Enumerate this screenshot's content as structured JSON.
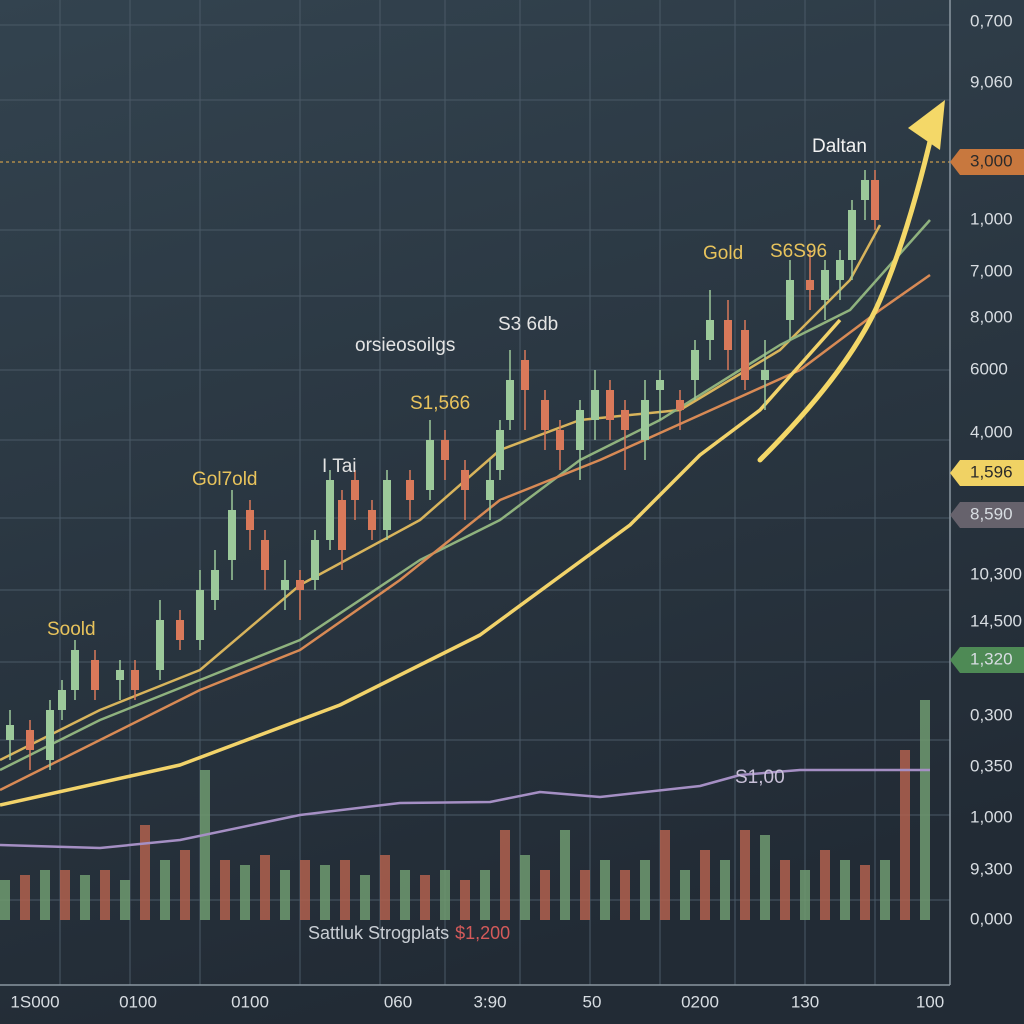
{
  "chart_data": {
    "type": "candlestick",
    "xlim": [
      0,
      95
    ],
    "ylim": [
      0,
      92
    ],
    "grid": true,
    "up_color": "#9cc99a",
    "down_color": "#d9795a",
    "candles": {
      "x": [
        1,
        3,
        5,
        6.2,
        7.5,
        9.5,
        12,
        13.5,
        16,
        18,
        20,
        21.5,
        23.2,
        25,
        26.5,
        28.5,
        30,
        31.5,
        33,
        34.2,
        35.5,
        37.2,
        38.7,
        41,
        43,
        44.5,
        46.5,
        49,
        50,
        51,
        52.5,
        54.5,
        56,
        58,
        59.5,
        61,
        62.5,
        64.5,
        66,
        68,
        69.5,
        71,
        72.8,
        74.5,
        76.5,
        79,
        81,
        82.5,
        84,
        85.2,
        86.5,
        87.5
      ],
      "open": [
        18,
        19,
        16,
        21,
        23,
        26,
        24,
        25,
        25,
        30,
        28,
        32,
        36,
        41,
        38,
        33,
        34,
        34,
        38,
        42,
        44,
        41,
        39,
        44,
        43,
        48,
        45,
        42,
        45,
        50,
        56,
        52,
        49,
        47,
        50,
        53,
        51,
        48,
        53,
        52,
        54,
        58,
        60,
        59,
        54,
        60,
        64,
        62,
        64,
        66,
        72,
        74
      ],
      "high": [
        21,
        20,
        22,
        24,
        28,
        27,
        26,
        26,
        32,
        31,
        35,
        37,
        43,
        42,
        39,
        36,
        35,
        39,
        45,
        43,
        45,
        42,
        45,
        45,
        50,
        49,
        46,
        46,
        50,
        57,
        57,
        53,
        50,
        52,
        55,
        54,
        52,
        54,
        55,
        53,
        58,
        63,
        62,
        60,
        58,
        66,
        67,
        66,
        67,
        72,
        75,
        75
      ],
      "low": [
        16,
        15,
        15,
        20,
        22,
        22,
        22,
        22,
        24,
        27,
        27,
        31,
        34,
        37,
        33,
        31,
        30,
        33,
        37,
        35,
        40,
        38,
        38,
        40,
        42,
        44,
        40,
        40,
        44,
        49,
        49,
        47,
        45,
        44,
        48,
        48,
        45,
        46,
        50,
        49,
        52,
        56,
        55,
        53,
        51,
        58,
        61,
        60,
        62,
        64,
        70,
        69
      ],
      "close": [
        19.5,
        17,
        21,
        23,
        27,
        23,
        25,
        23,
        30,
        28,
        33,
        35,
        41,
        39,
        35,
        34,
        33,
        38,
        44,
        37,
        42,
        39,
        44,
        42,
        48,
        46,
        43,
        44,
        49,
        54,
        53,
        49,
        47,
        51,
        53,
        50,
        49,
        52,
        54,
        51,
        57,
        60,
        57,
        54,
        55,
        64,
        63,
        65,
        66,
        71,
        74,
        70
      ]
    },
    "lines": [
      {
        "color": "#d8b45c",
        "x": [
          0,
          10,
          20,
          30,
          42,
          50,
          58,
          68,
          78,
          85,
          88
        ],
        "values": [
          16,
          21,
          25,
          33.5,
          40,
          47,
          50,
          51,
          57,
          64,
          69.5
        ]
      },
      {
        "color": "#8fb27e",
        "x": [
          0,
          10,
          20,
          30,
          42,
          50,
          58,
          66,
          78,
          85,
          93
        ],
        "values": [
          15,
          20,
          24,
          28,
          36,
          40,
          46,
          50,
          57.5,
          61,
          70
        ]
      },
      {
        "color": "#d88a55",
        "x": [
          0,
          20,
          30,
          40,
          50,
          60,
          70,
          80,
          88,
          93
        ],
        "values": [
          13,
          23,
          27,
          34,
          42,
          46,
          50.5,
          55,
          61,
          64.5
        ]
      },
      {
        "color": "#f2d36a",
        "x": [
          0,
          18,
          34,
          48,
          63,
          70,
          76,
          84
        ],
        "values": [
          11.5,
          15.5,
          21.5,
          28.5,
          39.5,
          46.5,
          51,
          60
        ]
      },
      {
        "color": "#a58fc4",
        "x": [
          0,
          10,
          18,
          30,
          40,
          49,
          54,
          60,
          70,
          74,
          80,
          93
        ],
        "values": [
          7.5,
          7.2,
          8,
          10.5,
          11.7,
          11.8,
          12.8,
          12.3,
          13.4,
          14.5,
          15,
          15
        ]
      }
    ],
    "volume": {
      "x": [
        0.5,
        2.5,
        4.5,
        6.5,
        8.5,
        10.5,
        12.5,
        14.5,
        16.5,
        18.5,
        20.5,
        22.5,
        24.5,
        26.5,
        28.5,
        30.5,
        32.5,
        34.5,
        36.5,
        38.5,
        40.5,
        42.5,
        44.5,
        46.5,
        48.5,
        50.5,
        52.5,
        54.5,
        56.5,
        58.5,
        60.5,
        62.5,
        64.5,
        66.5,
        68.5,
        70.5,
        72.5,
        74.5,
        76.5,
        78.5,
        80.5,
        82.5,
        84.5,
        86.5,
        88.5,
        90.5,
        92.5
      ],
      "values": [
        4,
        4.5,
        5,
        5,
        4.5,
        5,
        4,
        9.5,
        6,
        7,
        15,
        6,
        5.5,
        6.5,
        5,
        6,
        5.5,
        6,
        4.5,
        6.5,
        5,
        4.5,
        5,
        4,
        5,
        9,
        6.5,
        5,
        9,
        5,
        6,
        5,
        6,
        9,
        5,
        7,
        6,
        9,
        8.5,
        6,
        5,
        7,
        6,
        5.5,
        6,
        17,
        22
      ]
    },
    "volume_colors": [
      "#6f9a70",
      "#b0604e"
    ],
    "annotations": [
      "Soold",
      "Gol7old",
      "I Tai",
      "S1,566",
      "orsieosoilgs",
      "S3 6db",
      "Gold",
      "S6S96",
      "Daltan",
      "S1,00"
    ],
    "footer": {
      "text": "Sattluk Strogplats",
      "price": "$1,200"
    },
    "y_axis_labels": [
      {
        "text": "0,700"
      },
      {
        "text": "9,060"
      },
      {
        "text": "3,000",
        "badge": "#c8783e"
      },
      {
        "text": "1,000"
      },
      {
        "text": "7,000"
      },
      {
        "text": "8,000"
      },
      {
        "text": "6000"
      },
      {
        "text": "4,000"
      },
      {
        "text": "1,596",
        "badge": "#f0d264"
      },
      {
        "text": "8,590",
        "badge": "#66626c"
      },
      {
        "text": "10,300"
      },
      {
        "text": "14,500"
      },
      {
        "text": "1,320",
        "badge": "#4e8a55"
      },
      {
        "text": "0,300"
      },
      {
        "text": "0,350"
      },
      {
        "text": "1,000"
      },
      {
        "text": "9,300"
      },
      {
        "text": "0,000"
      }
    ],
    "x_axis_labels": [
      "1S000",
      "0100",
      "0100",
      "060",
      "3:90",
      "50",
      "0200",
      "130",
      "100"
    ]
  }
}
